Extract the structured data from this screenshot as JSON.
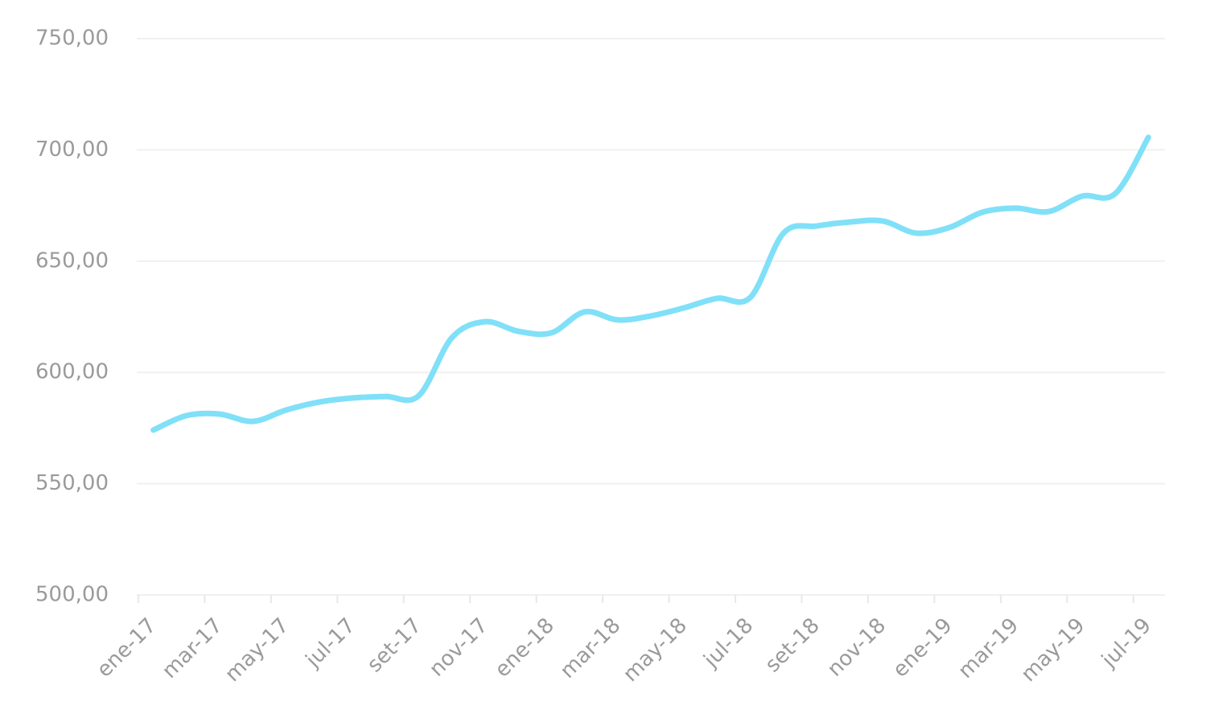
{
  "chart_data": {
    "type": "line",
    "categories": [
      "ene-17",
      null,
      "mar-17",
      null,
      "may-17",
      null,
      "jul-17",
      null,
      "set-17",
      null,
      "nov-17",
      null,
      "ene-18",
      null,
      "mar-18",
      null,
      "may-18",
      null,
      "jul-18",
      null,
      "set-18",
      null,
      "nov-18",
      null,
      "ene-19",
      null,
      "mar-19",
      null,
      "may-19",
      null,
      "jul-19"
    ],
    "series": [
      {
        "color": "#80e0f8",
        "values": [
          574.1,
          580.6,
          581.3,
          578.0,
          583.1,
          586.7,
          588.5,
          589.2,
          589.5,
          615.6,
          622.8,
          618.5,
          617.8,
          627.2,
          623.6,
          625.4,
          629.0,
          633.3,
          633.7,
          662.6,
          665.8,
          667.6,
          668.0,
          662.6,
          665.1,
          672.0,
          673.8,
          672.3,
          679.2,
          680.3,
          705.6
        ]
      }
    ],
    "ylim": [
      500,
      750
    ],
    "yticks": [
      {
        "value": 500,
        "label": "500,00"
      },
      {
        "value": 550,
        "label": "550,00"
      },
      {
        "value": 600,
        "label": "600,00"
      },
      {
        "value": 650,
        "label": "650,00"
      },
      {
        "value": 700,
        "label": "700,00"
      },
      {
        "value": 750,
        "label": "750,00"
      }
    ],
    "grid": true
  }
}
